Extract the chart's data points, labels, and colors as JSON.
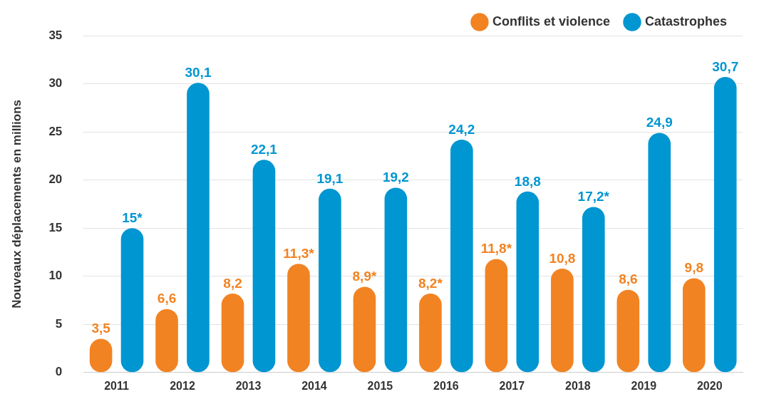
{
  "chart_data": {
    "type": "bar",
    "ylabel": "Nouveaux déplacements en millions",
    "categories": [
      "2011",
      "2012",
      "2013",
      "2014",
      "2015",
      "2016",
      "2017",
      "2018",
      "2019",
      "2020"
    ],
    "series": [
      {
        "name": "Conflits et violence",
        "color": "#f28322",
        "values": [
          3.5,
          6.6,
          8.2,
          11.3,
          8.9,
          8.2,
          11.8,
          10.8,
          8.6,
          9.8
        ],
        "value_labels": [
          "3,5",
          "6,6",
          "8,2",
          "11,3*",
          "8,9*",
          "8,2*",
          "11,8*",
          "10,8",
          "8,6",
          "9,8"
        ]
      },
      {
        "name": "Catastrophes",
        "color": "#0096d1",
        "values": [
          15,
          30.1,
          22.1,
          19.1,
          19.2,
          24.2,
          18.8,
          17.2,
          24.9,
          30.7
        ],
        "value_labels": [
          "15*",
          "30,1",
          "22,1",
          "19,1",
          "19,2",
          "24,2",
          "18,8",
          "17,2*",
          "24,9",
          "30,7"
        ]
      }
    ],
    "ylim": [
      0,
      35
    ],
    "yticks": [
      0,
      5,
      10,
      15,
      20,
      25,
      30,
      35
    ],
    "grid": "y",
    "legend": "top right"
  }
}
